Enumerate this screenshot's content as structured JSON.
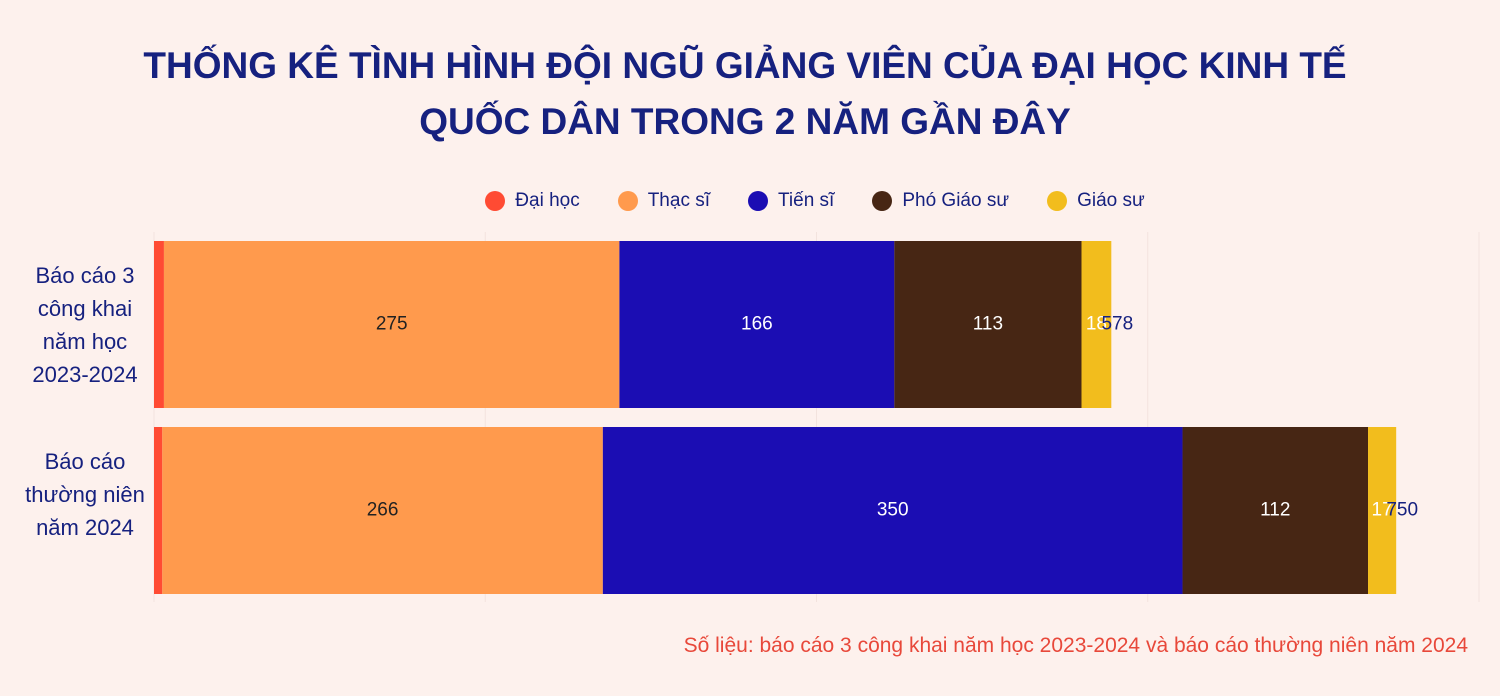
{
  "chart_data": {
    "type": "stacked-barh",
    "title": "THỐNG KÊ TÌNH HÌNH ĐỘI NGŨ GIẢNG VIÊN CỦA ĐẠI HỌC KINH TẾ QUỐC DÂN TRONG 2 NĂM GẦN ĐÂY",
    "categories": [
      "Báo cáo 3 công khai năm học 2023-2024",
      "Báo cáo thường niên năm 2024"
    ],
    "series": [
      {
        "name": "Đại học",
        "color": "#ff4b33",
        "values": [
          6,
          5
        ]
      },
      {
        "name": "Thạc sĩ",
        "color": "#ff9a4d",
        "values": [
          275,
          266
        ]
      },
      {
        "name": "Tiến sĩ",
        "color": "#1b0db3",
        "values": [
          166,
          350
        ]
      },
      {
        "name": "Phó Giáo sư",
        "color": "#472614",
        "values": [
          113,
          112
        ]
      },
      {
        "name": "Giáo sư",
        "color": "#f2bd1d",
        "values": [
          18,
          17
        ]
      }
    ],
    "totals": [
      578,
      750
    ],
    "xlim": [
      0,
      800
    ],
    "xticks": [
      0,
      200,
      400,
      600,
      800
    ],
    "grid": true,
    "note": "Số liệu: báo cáo 3 công khai năm học 2023-2024 và báo cáo thường niên năm 2024"
  }
}
